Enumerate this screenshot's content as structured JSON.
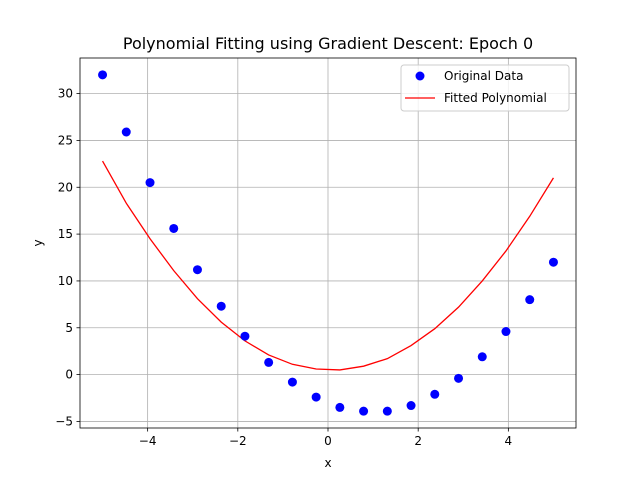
{
  "chart_data": {
    "type": "scatter",
    "title": "Polynomial Fitting using Gradient Descent: Epoch 0",
    "xlabel": "x",
    "ylabel": "y",
    "xlim": [
      -5.5,
      5.5
    ],
    "ylim": [
      -5.7,
      33.8
    ],
    "grid": true,
    "legend_position": "upper right",
    "x_ticks": [
      -4,
      -2,
      0,
      2,
      4
    ],
    "x_tick_labels": [
      "−4",
      "−2",
      "0",
      "2",
      "4"
    ],
    "y_ticks": [
      -5,
      0,
      5,
      10,
      15,
      20,
      25,
      30
    ],
    "y_tick_labels": [
      "−5",
      "0",
      "5",
      "10",
      "15",
      "20",
      "25",
      "30"
    ],
    "series": [
      {
        "name": "Original Data",
        "kind": "scatter",
        "color": "#0000ff",
        "x": [
          -5.0,
          -4.474,
          -3.947,
          -3.421,
          -2.895,
          -2.368,
          -1.842,
          -1.316,
          -0.789,
          -0.263,
          0.263,
          0.789,
          1.316,
          1.842,
          2.368,
          2.895,
          3.421,
          3.947,
          4.474,
          5.0
        ],
        "y": [
          32.0,
          25.9,
          20.5,
          15.6,
          11.2,
          7.3,
          4.1,
          1.3,
          -0.8,
          -2.4,
          -3.5,
          -3.9,
          -3.9,
          -3.3,
          -2.1,
          -0.4,
          1.9,
          4.6,
          8.0,
          12.0
        ]
      },
      {
        "name": "Fitted Polynomial",
        "kind": "line",
        "color": "#ff0000",
        "x": [
          -5.0,
          -4.474,
          -3.947,
          -3.421,
          -2.895,
          -2.368,
          -1.842,
          -1.316,
          -0.789,
          -0.263,
          0.263,
          0.789,
          1.316,
          1.842,
          2.368,
          2.895,
          3.421,
          3.947,
          4.474,
          5.0
        ],
        "y": [
          22.8,
          18.3,
          14.5,
          11.1,
          8.1,
          5.6,
          3.6,
          2.1,
          1.1,
          0.6,
          0.5,
          0.9,
          1.7,
          3.1,
          4.9,
          7.2,
          10.0,
          13.2,
          16.9,
          21.0
        ]
      }
    ]
  }
}
